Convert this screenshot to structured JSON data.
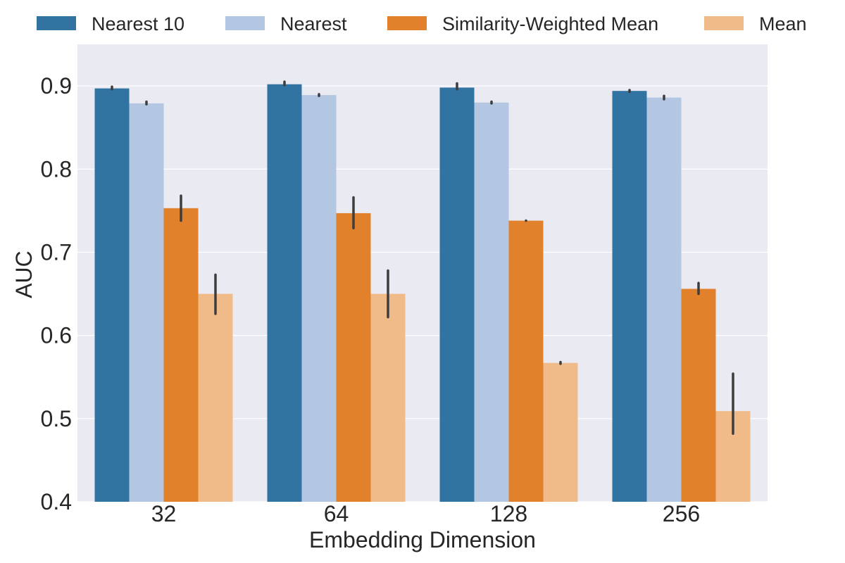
{
  "chart_data": {
    "type": "bar",
    "title": "",
    "xlabel": "Embedding Dimension",
    "ylabel": "AUC",
    "ylim": [
      0.4,
      0.95
    ],
    "yticks": [
      0.4,
      0.5,
      0.6,
      0.7,
      0.8,
      0.9
    ],
    "ytick_labels": [
      "0.4",
      "0.5",
      "0.6",
      "0.7",
      "0.8",
      "0.9"
    ],
    "grid": true,
    "legend_position": "top",
    "categories": [
      "32",
      "64",
      "128",
      "256"
    ],
    "series": [
      {
        "name": "Nearest 10",
        "color": "#3274a1",
        "values": [
          0.897,
          0.902,
          0.898,
          0.894
        ],
        "errors": [
          [
            0.896,
            0.899
          ],
          [
            0.901,
            0.905
          ],
          [
            0.896,
            0.903
          ],
          [
            0.893,
            0.895
          ]
        ]
      },
      {
        "name": "Nearest",
        "color": "#b3c7e3",
        "values": [
          0.879,
          0.889,
          0.88,
          0.886
        ],
        "errors": [
          [
            0.878,
            0.881
          ],
          [
            0.888,
            0.89
          ],
          [
            0.879,
            0.881
          ],
          [
            0.884,
            0.888
          ]
        ]
      },
      {
        "name": "Similarity-Weighted Mean",
        "color": "#e1812c",
        "values": [
          0.753,
          0.747,
          0.738,
          0.656
        ],
        "errors": [
          [
            0.738,
            0.768
          ],
          [
            0.729,
            0.766
          ],
          [
            0.738,
            0.738
          ],
          [
            0.65,
            0.663
          ]
        ]
      },
      {
        "name": "Mean",
        "color": "#f0bb88",
        "values": [
          0.65,
          0.65,
          0.567,
          0.509
        ],
        "errors": [
          [
            0.626,
            0.673
          ],
          [
            0.622,
            0.678
          ],
          [
            0.566,
            0.568
          ],
          [
            0.482,
            0.554
          ]
        ]
      }
    ],
    "plot_background": "#eaeaf2",
    "grid_color": "#ffffff",
    "errorbar_color": "#3d3d3d"
  }
}
